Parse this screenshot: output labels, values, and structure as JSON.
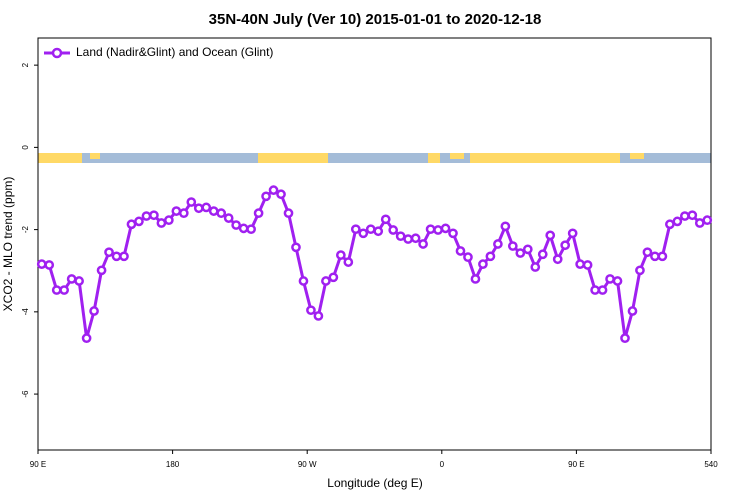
{
  "chart_data": {
    "type": "line",
    "title": "35N-40N July (Ver 10)   2015-01-01 to 2020-12-18",
    "x_label": "Longitude (deg E)",
    "y_label": "XCO2 - MLO trend (ppm)",
    "legend": "top-left",
    "x": [
      92.5,
      97.5,
      102.5,
      107.5,
      112.5,
      117.5,
      122.5,
      127.5,
      132.5,
      137.5,
      142.5,
      147.5,
      152.5,
      157.5,
      162.5,
      167.5,
      172.5,
      177.5,
      182.5,
      187.5,
      192.5,
      197.5,
      202.5,
      207.5,
      212.5,
      217.5,
      222.5,
      227.5,
      232.5,
      237.5,
      242.5,
      247.5,
      252.5,
      257.5,
      262.5,
      267.5,
      272.5,
      277.5,
      282.5,
      287.5,
      292.5,
      297.5,
      302.5,
      307.5,
      312.5,
      317.5,
      322.5,
      327.5,
      332.5,
      337.5,
      342.5,
      347.5,
      352.5,
      357.5,
      362.5,
      367.5,
      372.5,
      377.5,
      382.5,
      387.5,
      392.5,
      397.5,
      402.5,
      407.5,
      412.5,
      417.5,
      422.5,
      427.5,
      432.5,
      437.5,
      442.5,
      447.5,
      452.5,
      457.5,
      462.5,
      467.5,
      472.5,
      477.5,
      482.5,
      487.5,
      492.5,
      497.5,
      502.5,
      507.5,
      512.5,
      517.5,
      522.5,
      527.5,
      532.5,
      537.5
    ],
    "series": [
      {
        "name": "Land (Nadir&Glint) and Ocean (Glint)",
        "color": "#a020f0",
        "values": [
          -2.84,
          -2.86,
          -3.47,
          -3.47,
          -3.2,
          -3.25,
          -4.64,
          -3.98,
          -2.99,
          -2.55,
          -2.65,
          -2.65,
          -1.87,
          -1.8,
          -1.67,
          -1.65,
          -1.84,
          -1.77,
          -1.55,
          -1.6,
          -1.33,
          -1.48,
          -1.46,
          -1.55,
          -1.6,
          -1.72,
          -1.89,
          -1.97,
          -1.99,
          -1.6,
          -1.19,
          -1.04,
          -1.14,
          -1.6,
          -2.43,
          -3.25,
          -3.96,
          -4.1,
          -3.25,
          -3.16,
          -2.62,
          -2.79,
          -1.99,
          -2.09,
          -1.99,
          -2.04,
          -1.75,
          -2.01,
          -2.16,
          -2.23,
          -2.21,
          -2.35,
          -1.99,
          -2.01,
          -1.97,
          -2.09,
          -2.52,
          -2.67,
          -3.2,
          -2.84,
          -2.65,
          -2.35,
          -1.92,
          -2.4,
          -2.57,
          -2.48,
          -2.91,
          -2.6,
          -2.14,
          -2.72,
          -2.38,
          -2.09,
          -2.84,
          -2.86,
          -3.47,
          -3.47,
          -3.2,
          -3.25,
          -4.64,
          -3.98,
          -2.99,
          -2.55,
          -2.65,
          -2.65,
          -1.87,
          -1.8,
          -1.67,
          -1.65,
          -1.84,
          -1.77
        ]
      }
    ],
    "xlim": [
      90,
      540
    ],
    "xticks": [
      {
        "value": 90,
        "label": "90 E"
      },
      180,
      {
        "value": 270,
        "label": "90 W"
      },
      {
        "value": 360,
        "label": "0"
      },
      {
        "value": 450,
        "label": "90 E"
      },
      540
    ],
    "ylim": [
      -7.36,
      2.66
    ],
    "yticks": [
      2,
      0,
      -2,
      -4,
      -6
    ]
  }
}
